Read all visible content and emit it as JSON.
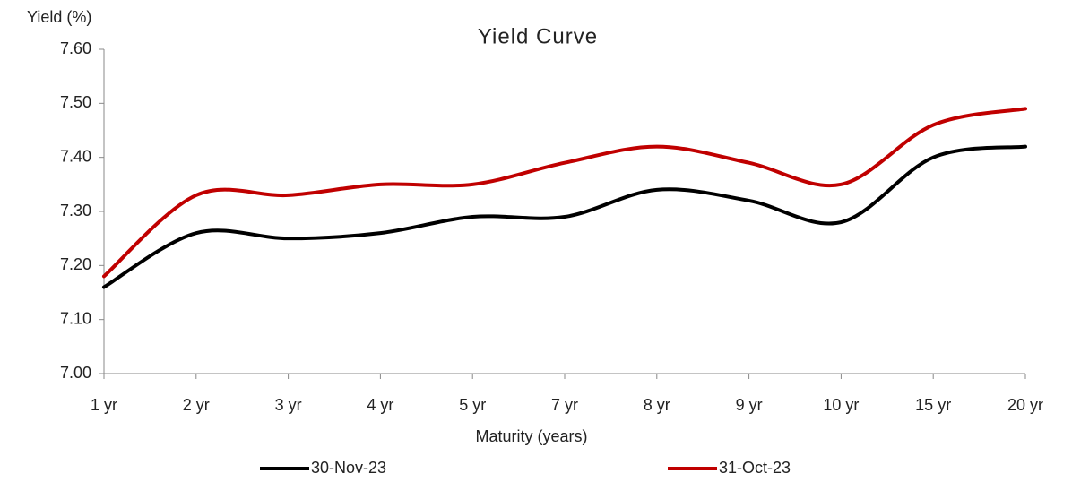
{
  "chart_data": {
    "type": "line",
    "title": "Yield Curve",
    "ylabel": "Yield (%)",
    "xlabel": "Maturity (years)",
    "categories": [
      "1 yr",
      "2 yr",
      "3 yr",
      "4 yr",
      "5 yr",
      "7 yr",
      "8 yr",
      "9 yr",
      "10 yr",
      "15 yr",
      "20 yr"
    ],
    "series": [
      {
        "name": "30-Nov-23",
        "color": "#000000",
        "values": [
          7.16,
          7.26,
          7.25,
          7.26,
          7.29,
          7.29,
          7.34,
          7.32,
          7.28,
          7.4,
          7.42
        ]
      },
      {
        "name": "31-Oct-23",
        "color": "#c00000",
        "values": [
          7.18,
          7.33,
          7.33,
          7.35,
          7.35,
          7.39,
          7.42,
          7.39,
          7.35,
          7.46,
          7.49
        ]
      }
    ],
    "ylim": [
      7.0,
      7.6
    ],
    "yticks": [
      {
        "value": 7.0,
        "label": "7.00"
      },
      {
        "value": 7.1,
        "label": "7.10"
      },
      {
        "value": 7.2,
        "label": "7.20"
      },
      {
        "value": 7.3,
        "label": "7.30"
      },
      {
        "value": 7.4,
        "label": "7.40"
      },
      {
        "value": 7.5,
        "label": "7.50"
      },
      {
        "value": 7.6,
        "label": "7.60"
      }
    ],
    "legend": "bottom",
    "grid": false,
    "smooth": true
  }
}
